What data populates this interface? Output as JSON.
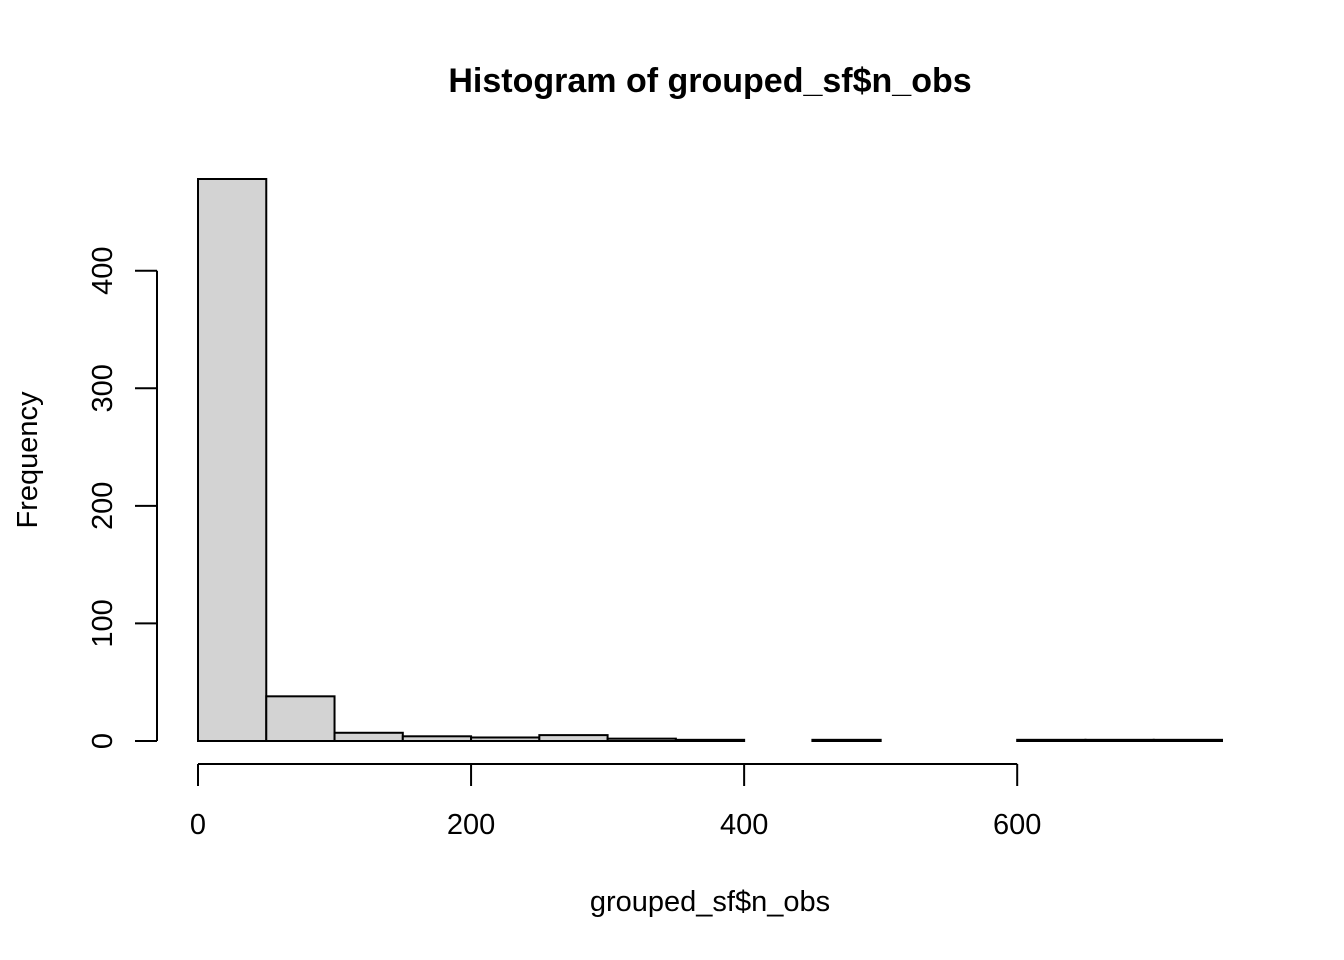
{
  "chart_data": {
    "type": "bar",
    "title": "Histogram of grouped_sf$n_obs",
    "xlabel": "grouped_sf$n_obs",
    "ylabel": "Frequency",
    "bin_edges": [
      0,
      50,
      100,
      150,
      200,
      250,
      300,
      350,
      400,
      450,
      500,
      550,
      600,
      650,
      700,
      750
    ],
    "values": [
      478,
      38,
      7,
      4,
      3,
      5,
      2,
      1,
      0,
      1,
      0,
      0,
      1,
      1,
      1
    ],
    "xlim": [
      0,
      750
    ],
    "ylim": [
      0,
      478
    ],
    "x_ticks": [
      0,
      200,
      400,
      600
    ],
    "y_ticks": [
      0,
      100,
      200,
      300,
      400
    ],
    "grid": false,
    "legend": "none",
    "colors": {
      "bar_fill": "#d3d3d3",
      "bar_stroke": "#000000"
    }
  }
}
